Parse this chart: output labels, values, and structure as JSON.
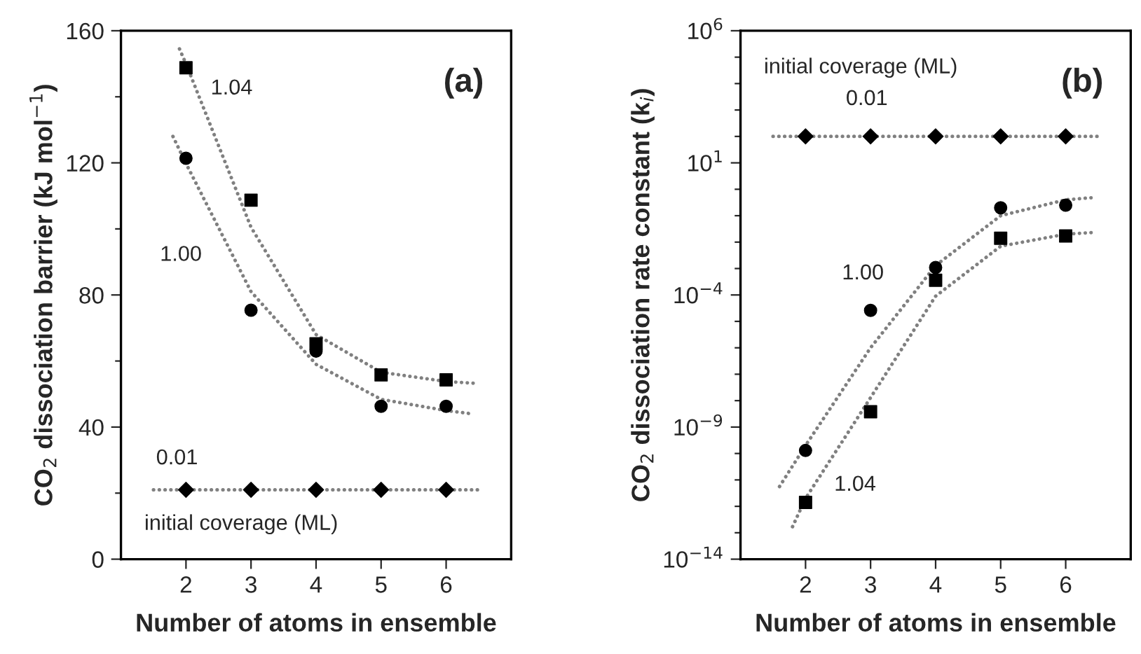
{
  "chart_data": [
    {
      "type": "scatter",
      "xlabel": "Number of atoms in ensemble",
      "ylabel": "CO$_{2}$ dissociation barrier (kJ mol$^{−1}$)",
      "xlim": [
        1,
        7
      ],
      "xticks": [
        2,
        3,
        4,
        5,
        6
      ],
      "ylim": [
        0,
        160
      ],
      "yticks": [
        0,
        {
          "value": 20,
          "label": null
        },
        40,
        {
          "value": 60,
          "label": null
        },
        80,
        {
          "value": 100,
          "label": null
        },
        120,
        {
          "value": 140,
          "label": null
        },
        160
      ],
      "grid": false,
      "series": [
        {
          "marker": "square",
          "color": "#000000",
          "x": [
            2,
            3,
            4,
            5,
            6
          ],
          "values": [
            148.8,
            108.7,
            65.2,
            55.8,
            54.3
          ]
        },
        {
          "marker": "circle",
          "color": "#000000",
          "x": [
            2,
            3,
            4,
            5,
            6
          ],
          "values": [
            121.4,
            75.4,
            63,
            46.3,
            46.3
          ]
        },
        {
          "marker": "diamond",
          "color": "#000000",
          "x": [
            2,
            3,
            4,
            5,
            6
          ],
          "values": [
            21,
            21,
            21,
            21,
            21
          ]
        },
        {
          "type": "line",
          "line_style": "dotted",
          "color": "#808080",
          "x": [
            1.9,
            2,
            3,
            4,
            5,
            6,
            6.5
          ],
          "values": [
            154.5,
            150,
            100.5,
            68,
            56.6,
            53.8,
            53.2
          ]
        },
        {
          "type": "line",
          "line_style": "dotted",
          "color": "#808080",
          "x": [
            1.8,
            2,
            3,
            4,
            5,
            6,
            6.4
          ],
          "values": [
            128,
            119.8,
            81,
            59,
            48.4,
            45,
            44
          ]
        },
        {
          "type": "line",
          "line_style": "dotted",
          "color": "#808080",
          "x": [
            1.5,
            6.5
          ],
          "values": [
            21,
            21
          ]
        }
      ],
      "annotations": [
        "(a)",
        "1.04",
        "1.00",
        "0.01",
        "initial coverage (ML)"
      ]
    },
    {
      "type": "scatter",
      "log": "y",
      "xlabel": "Number of atoms in ensemble",
      "ylabel": "CO$_{2}$ dissociation rate constant (k$_{i}$)",
      "xlim": [
        1,
        7
      ],
      "xticks": [
        2,
        3,
        4,
        5,
        6
      ],
      "ylim": [
        1e-14,
        1000000.0
      ],
      "yticks": [
        {
          "value": 1e-14,
          "label": "10$^{−14}$"
        },
        {
          "value": 1e-13,
          "label": null
        },
        {
          "value": 1e-12,
          "label": null
        },
        {
          "value": 1e-11,
          "label": null
        },
        {
          "value": 1e-10,
          "label": null
        },
        {
          "value": 1e-09,
          "label": "10$^{−9}$"
        },
        {
          "value": 1e-08,
          "label": null
        },
        {
          "value": 1e-07,
          "label": null
        },
        {
          "value": 1e-06,
          "label": null
        },
        {
          "value": 1e-05,
          "label": null
        },
        {
          "value": 0.0001,
          "label": "10$^{−4}$"
        },
        {
          "value": 0.001,
          "label": null
        },
        {
          "value": 0.01,
          "label": null
        },
        {
          "value": 0.1,
          "label": null
        },
        {
          "value": 1,
          "label": null
        },
        {
          "value": 10,
          "label": "10$^{1}$"
        },
        {
          "value": 100,
          "label": null
        },
        {
          "value": 1000,
          "label": null
        },
        {
          "value": 10000,
          "label": null
        },
        {
          "value": 100000,
          "label": null
        },
        {
          "value": 1000000.0,
          "label": "10$^{6}$"
        }
      ],
      "grid": false,
      "series": [
        {
          "marker": "square",
          "color": "#000000",
          "x": [
            2,
            3,
            4,
            5,
            6
          ],
          "values": [
            1.4e-12,
            3.8e-09,
            0.00036,
            0.014,
            0.017
          ]
        },
        {
          "marker": "circle",
          "color": "#000000",
          "x": [
            2,
            3,
            4,
            5,
            6
          ],
          "values": [
            1.3e-10,
            2.6e-05,
            0.0011,
            0.2,
            0.25
          ]
        },
        {
          "marker": "diamond",
          "color": "#000000",
          "x": [
            2,
            3,
            4,
            5,
            6
          ],
          "values": [
            100,
            100,
            100,
            100,
            100
          ]
        },
        {
          "type": "line",
          "line_style": "dotted",
          "color": "#808080",
          "x": [
            1.8,
            2,
            3,
            4,
            5,
            6,
            6.4
          ],
          "values": [
            1.7e-13,
            2e-12,
            1.3e-08,
            9e-05,
            0.007,
            0.02,
            0.023
          ]
        },
        {
          "type": "line",
          "line_style": "dotted",
          "color": "#808080",
          "x": [
            1.6,
            2,
            3,
            4,
            5,
            6,
            6.4
          ],
          "values": [
            5.6e-12,
            2e-10,
            1e-06,
            0.0013,
            0.1,
            0.4,
            0.48
          ]
        },
        {
          "type": "line",
          "line_style": "dotted",
          "color": "#808080",
          "x": [
            1.5,
            6.5
          ],
          "values": [
            100,
            100
          ]
        }
      ],
      "annotations": [
        "(b)",
        "1.00",
        "1.04",
        "0.01",
        "initial coverage (ML)"
      ]
    }
  ]
}
